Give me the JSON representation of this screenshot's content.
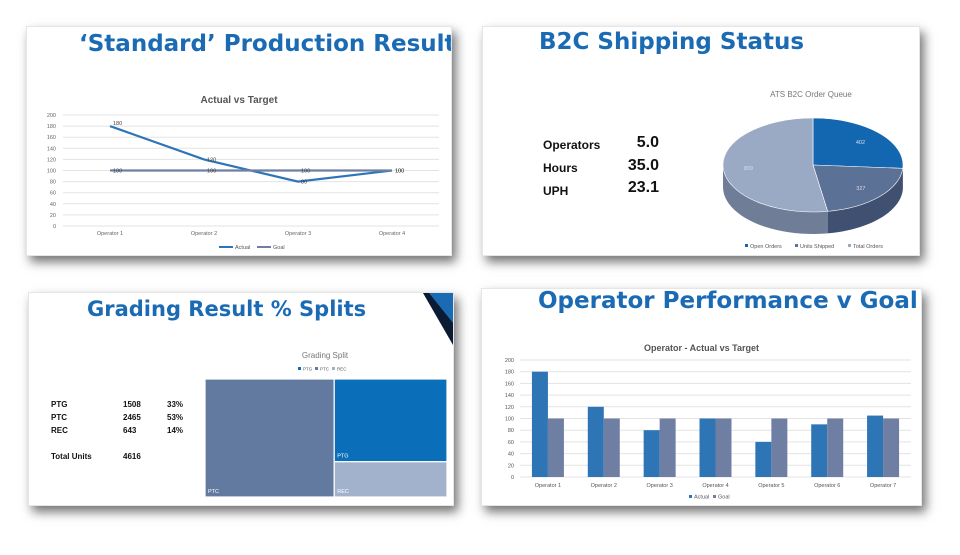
{
  "panels": {
    "standard": {
      "title": "‘Standard’ Production Results",
      "chart_title": "Actual vs Target"
    },
    "b2c": {
      "title": "B2C Shipping Status",
      "chart_title": "ATS B2C Order Queue",
      "stats": [
        {
          "label": "Operators",
          "value": "5.0"
        },
        {
          "label": "Hours",
          "value": "35.0"
        },
        {
          "label": "UPH",
          "value": "23.1"
        }
      ]
    },
    "grading": {
      "title": "Grading Result % Splits",
      "chart_title": "Grading Split",
      "table": [
        {
          "label": "PTG",
          "count": "1508",
          "pct": "33%"
        },
        {
          "label": "PTC",
          "count": "2465",
          "pct": "53%"
        },
        {
          "label": "REC",
          "count": "643",
          "pct": "14%"
        }
      ],
      "total_label": "Total Units",
      "total_value": "4616"
    },
    "operator": {
      "title": "Operator Performance v Goal",
      "chart_title": "Operator - Actual vs Target"
    }
  },
  "colors": {
    "title_blue": "#1a6bb3",
    "actual": "#2e75b6",
    "goal": "#6f7fa3",
    "treemap_ptc": "#627aa0",
    "treemap_ptg": "#0a6fb8",
    "treemap_rec": "#a3b2cc",
    "pie_open": "#1366b0",
    "pie_units": "#5c7196",
    "pie_total": "#9aa9c4"
  },
  "chart_data": [
    {
      "type": "line",
      "title": "Actual vs Target",
      "categories": [
        "Operator 1",
        "Operator 2",
        "Operator 3",
        "Operator 4"
      ],
      "series": [
        {
          "name": "Actual",
          "values": [
            180,
            120,
            80,
            100
          ]
        },
        {
          "name": "Goal",
          "values": [
            100,
            100,
            100,
            100
          ]
        }
      ],
      "data_labels": [
        [
          "180",
          "120",
          "80",
          "100"
        ],
        [
          "100",
          "100",
          "100",
          "100"
        ]
      ],
      "ylim": [
        0,
        200
      ],
      "yticks": [
        "0",
        "20",
        "40",
        "60",
        "80",
        "100",
        "120",
        "140",
        "160",
        "180",
        "200"
      ],
      "grid": true,
      "legend": "bottom"
    },
    {
      "type": "pie",
      "title": "ATS B2C Order Queue",
      "labels": [
        "Open Orders",
        "Units Shipped",
        "Total Orders"
      ],
      "values": [
        402,
        327,
        809
      ],
      "data_labels": [
        "402",
        "327",
        "809"
      ],
      "legend": "bottom"
    },
    {
      "type": "treemap",
      "title": "Grading Split",
      "labels": [
        "PTC",
        "PTG",
        "REC"
      ],
      "values": [
        2465,
        1508,
        643
      ],
      "legend_order": [
        "PTG",
        "PTC",
        "REC"
      ],
      "legend": "top"
    },
    {
      "type": "bar",
      "title": "Operator - Actual vs Target",
      "categories": [
        "Operator 1",
        "Operator 2",
        "Operator 3",
        "Operator 4",
        "Operator 5",
        "Operator 6",
        "Operator 7"
      ],
      "series": [
        {
          "name": "Actual",
          "values": [
            180,
            120,
            80,
            100,
            60,
            90,
            105
          ]
        },
        {
          "name": "Goal",
          "values": [
            100,
            100,
            100,
            100,
            100,
            100,
            100
          ]
        }
      ],
      "ylim": [
        0,
        200
      ],
      "yticks": [
        "0",
        "20",
        "40",
        "60",
        "80",
        "100",
        "120",
        "140",
        "160",
        "180",
        "200"
      ],
      "grid": true,
      "legend": "bottom"
    }
  ]
}
